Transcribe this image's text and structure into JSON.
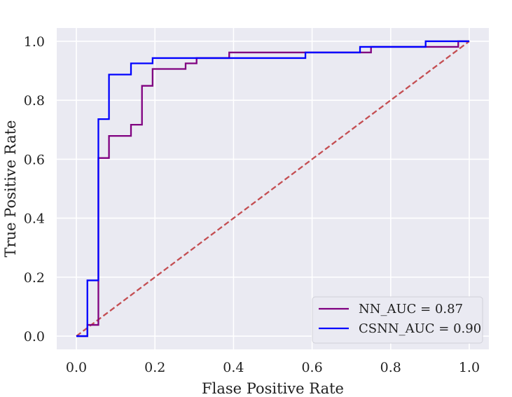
{
  "chart_data": {
    "type": "line",
    "xlabel": "Flase Positive Rate",
    "ylabel": "True Positive Rate",
    "xlim": [
      -0.05,
      1.05
    ],
    "ylim": [
      -0.045,
      1.045
    ],
    "xticks": [
      0.0,
      0.2,
      0.4,
      0.6,
      0.8,
      1.0
    ],
    "xtick_labels": [
      "0.0",
      "0.2",
      "0.4",
      "0.6",
      "0.8",
      "1.0"
    ],
    "yticks": [
      0.0,
      0.2,
      0.4,
      0.6,
      0.8,
      1.0
    ],
    "ytick_labels": [
      "0.0",
      "0.2",
      "0.4",
      "0.6",
      "0.8",
      "1.0"
    ],
    "grid": true,
    "legend_position": "lower-right",
    "background_color": "#eaeaf2",
    "series": [
      {
        "name": "NN_AUC = 0.87",
        "color": "#800080",
        "step": true,
        "points": [
          [
            0.0,
            0.0
          ],
          [
            0.028,
            0.0
          ],
          [
            0.028,
            0.038
          ],
          [
            0.056,
            0.038
          ],
          [
            0.056,
            0.604
          ],
          [
            0.083,
            0.604
          ],
          [
            0.083,
            0.679
          ],
          [
            0.139,
            0.679
          ],
          [
            0.139,
            0.717
          ],
          [
            0.167,
            0.717
          ],
          [
            0.167,
            0.849
          ],
          [
            0.194,
            0.849
          ],
          [
            0.194,
            0.906
          ],
          [
            0.278,
            0.906
          ],
          [
            0.278,
            0.925
          ],
          [
            0.306,
            0.925
          ],
          [
            0.306,
            0.943
          ],
          [
            0.389,
            0.943
          ],
          [
            0.389,
            0.962
          ],
          [
            0.75,
            0.962
          ],
          [
            0.75,
            0.981
          ],
          [
            0.972,
            0.981
          ],
          [
            0.972,
            1.0
          ],
          [
            1.0,
            1.0
          ]
        ]
      },
      {
        "name": "CSNN_AUC = 0.90",
        "color": "#0000ff",
        "step": true,
        "points": [
          [
            0.0,
            0.0
          ],
          [
            0.028,
            0.0
          ],
          [
            0.028,
            0.189
          ],
          [
            0.056,
            0.189
          ],
          [
            0.056,
            0.736
          ],
          [
            0.083,
            0.736
          ],
          [
            0.083,
            0.887
          ],
          [
            0.139,
            0.887
          ],
          [
            0.139,
            0.925
          ],
          [
            0.194,
            0.925
          ],
          [
            0.194,
            0.943
          ],
          [
            0.583,
            0.943
          ],
          [
            0.583,
            0.962
          ],
          [
            0.722,
            0.962
          ],
          [
            0.722,
            0.981
          ],
          [
            0.889,
            0.981
          ],
          [
            0.889,
            1.0
          ],
          [
            1.0,
            1.0
          ]
        ]
      },
      {
        "name": "",
        "color": "#c44e52",
        "dashed": true,
        "points": [
          [
            0.0,
            0.0
          ],
          [
            1.0,
            1.0
          ]
        ]
      }
    ]
  }
}
